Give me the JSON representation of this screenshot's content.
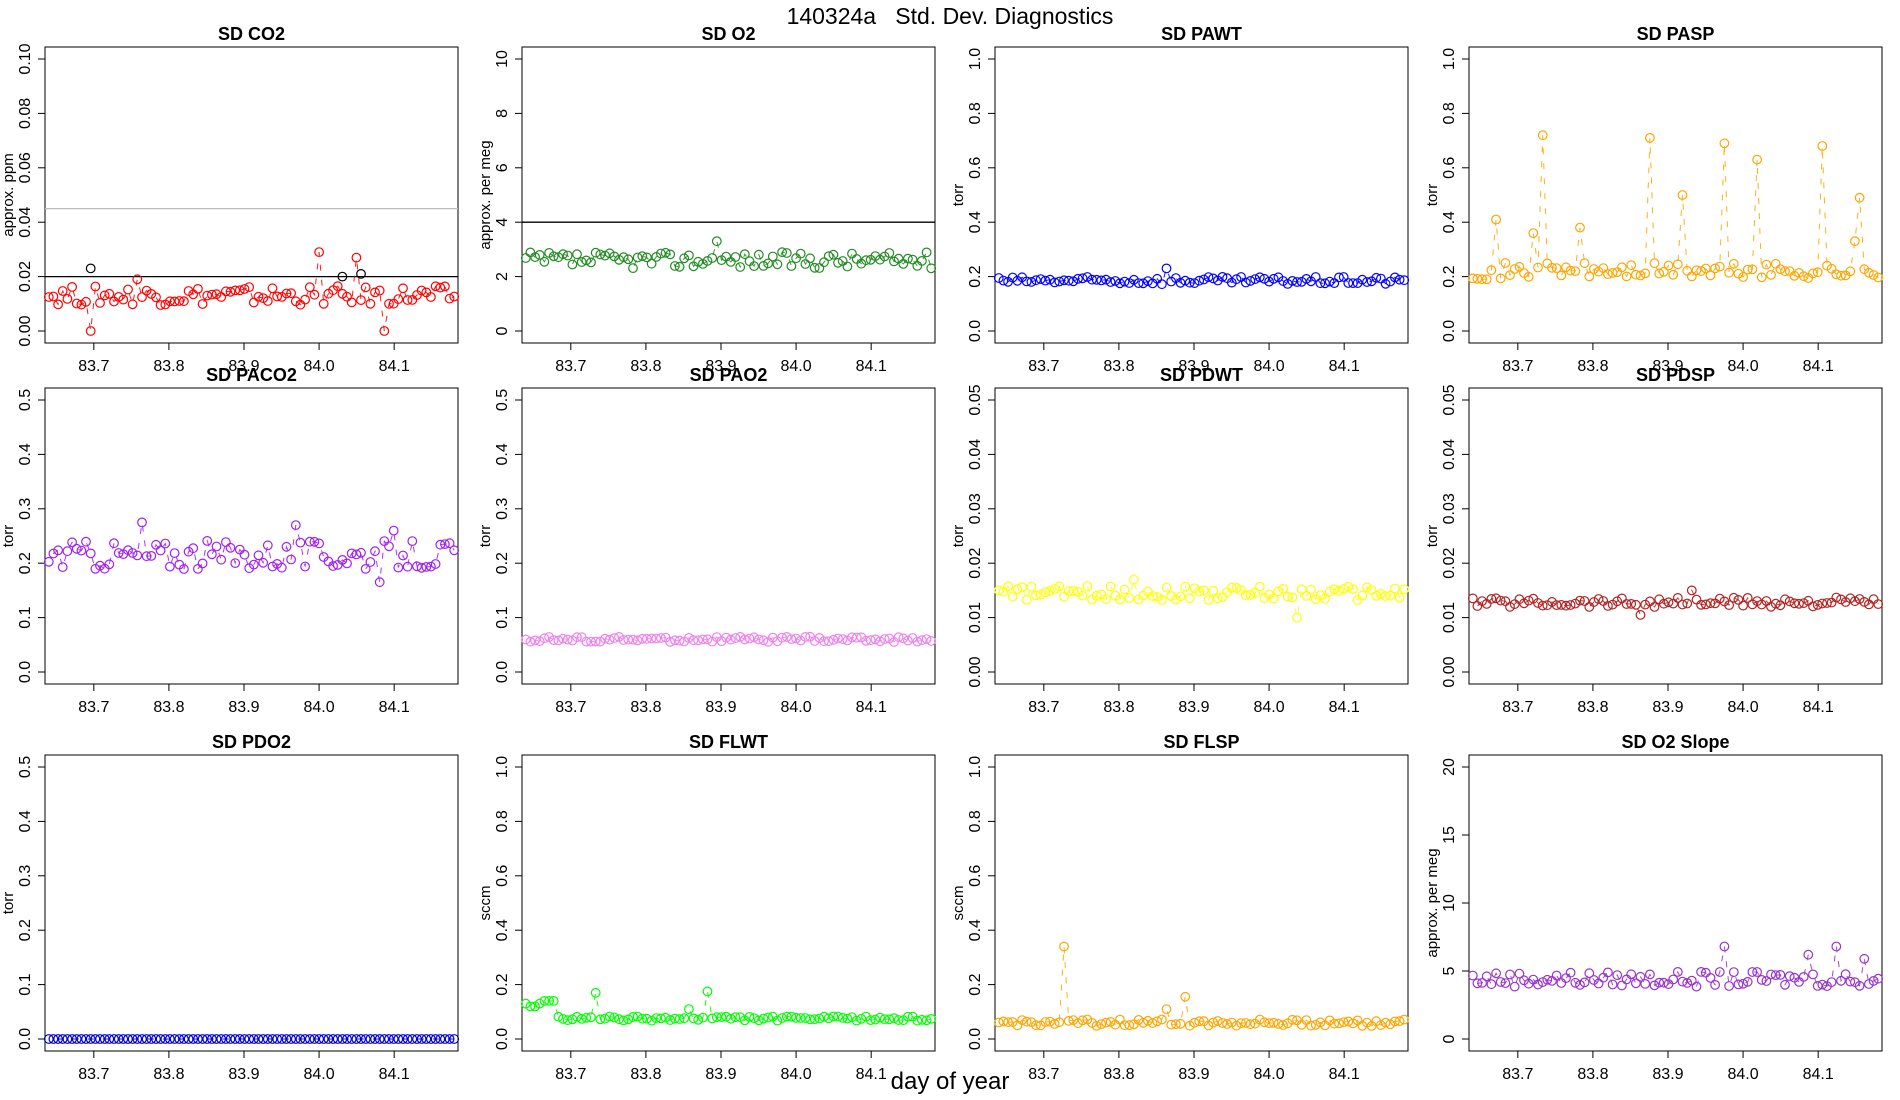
{
  "figure": {
    "title": "140324a   Std. Dev. Diagnostics",
    "xlabel": "day of year"
  },
  "chart_data": [
    {
      "type": "line",
      "title": "SD CO2",
      "ylabel": "approx. ppm",
      "xlim": [
        83.635,
        84.185
      ],
      "ylim": [
        0,
        0.1
      ],
      "yticks": [
        "0.00",
        "0.02",
        "0.04",
        "0.06",
        "0.08",
        "0.10"
      ],
      "xticks": [
        "83.7",
        "83.8",
        "83.9",
        "84.0",
        "84.1"
      ],
      "color": "#ff0000",
      "base": 0.013,
      "noise": 0.0035,
      "phase": 1,
      "spikes": [
        [
          9,
          0.0
        ],
        [
          19,
          0.019
        ],
        [
          58,
          0.029
        ],
        [
          66,
          0.027
        ],
        [
          72,
          0.0
        ]
      ],
      "hlines": [
        {
          "y": 0.02,
          "color": "#000000"
        },
        {
          "y": 0.045,
          "color": "#bbbbbb"
        }
      ],
      "flagged": [
        [
          9,
          0.023
        ],
        [
          63,
          0.02
        ],
        [
          67,
          0.021
        ]
      ],
      "flag_color": "#000000"
    },
    {
      "type": "line",
      "title": "SD O2",
      "ylabel": "approx. per meg",
      "xlim": [
        83.635,
        84.185
      ],
      "ylim": [
        0,
        10
      ],
      "yticks": [
        "0",
        "2",
        "4",
        "6",
        "8",
        "10"
      ],
      "xticks": [
        "83.7",
        "83.8",
        "83.9",
        "84.0",
        "84.1"
      ],
      "color": "#228B22",
      "base": 2.6,
      "noise": 0.3,
      "phase": 2,
      "spikes": [
        [
          41,
          3.3
        ]
      ],
      "hlines": [
        {
          "y": 4,
          "color": "#000000"
        }
      ],
      "flagged": []
    },
    {
      "type": "line",
      "title": "SD PAWT",
      "ylabel": "torr",
      "xlim": [
        83.635,
        84.185
      ],
      "ylim": [
        0,
        1
      ],
      "yticks": [
        "0.0",
        "0.2",
        "0.4",
        "0.6",
        "0.8",
        "1.0"
      ],
      "xticks": [
        "83.7",
        "83.8",
        "83.9",
        "84.0",
        "84.1"
      ],
      "color": "#0000ff",
      "base": 0.185,
      "noise": 0.014,
      "phase": 3,
      "spikes": [
        [
          36,
          0.23
        ]
      ],
      "hlines": [],
      "flagged": []
    },
    {
      "type": "line",
      "title": "SD PASP",
      "ylabel": "torr",
      "xlim": [
        83.635,
        84.185
      ],
      "ylim": [
        0,
        1
      ],
      "yticks": [
        "0.0",
        "0.2",
        "0.4",
        "0.6",
        "0.8",
        "1.0"
      ],
      "xticks": [
        "83.7",
        "83.8",
        "83.9",
        "84.0",
        "84.1"
      ],
      "color": "#ffa500",
      "base": 0.22,
      "noise": 0.03,
      "phase": 4,
      "spikes": [
        [
          5,
          0.41
        ],
        [
          13,
          0.36
        ],
        [
          15,
          0.72
        ],
        [
          23,
          0.38
        ],
        [
          38,
          0.71
        ],
        [
          45,
          0.5
        ],
        [
          54,
          0.69
        ],
        [
          61,
          0.63
        ],
        [
          75,
          0.68
        ],
        [
          83,
          0.49
        ],
        [
          82,
          0.33
        ]
      ],
      "hlines": [],
      "flagged": []
    },
    {
      "type": "line",
      "title": "SD PACO2",
      "ylabel": "torr",
      "xlim": [
        83.635,
        84.185
      ],
      "ylim": [
        0,
        0.5
      ],
      "yticks": [
        "0.0",
        "0.1",
        "0.2",
        "0.3",
        "0.4",
        "0.5"
      ],
      "xticks": [
        "83.7",
        "83.8",
        "83.9",
        "84.0",
        "84.1"
      ],
      "color": "#a020f0",
      "base": 0.215,
      "noise": 0.027,
      "phase": 5,
      "spikes": [
        [
          20,
          0.275
        ],
        [
          53,
          0.27
        ],
        [
          74,
          0.26
        ],
        [
          71,
          0.165
        ]
      ],
      "hlines": [],
      "flagged": []
    },
    {
      "type": "line",
      "title": "SD PAO2",
      "ylabel": "torr",
      "xlim": [
        83.635,
        84.185
      ],
      "ylim": [
        0,
        0.5
      ],
      "yticks": [
        "0.0",
        "0.1",
        "0.2",
        "0.3",
        "0.4",
        "0.5"
      ],
      "xticks": [
        "83.7",
        "83.8",
        "83.9",
        "84.0",
        "84.1"
      ],
      "color": "#ee82ee",
      "base": 0.06,
      "noise": 0.005,
      "phase": 6,
      "spikes": [],
      "hlines": [],
      "flagged": []
    },
    {
      "type": "line",
      "title": "SD PDWT",
      "ylabel": "torr",
      "xlim": [
        83.635,
        84.185
      ],
      "ylim": [
        0,
        0.05
      ],
      "yticks": [
        "0.00",
        "0.01",
        "0.02",
        "0.03",
        "0.04",
        "0.05"
      ],
      "xticks": [
        "83.7",
        "83.8",
        "83.9",
        "84.0",
        "84.1"
      ],
      "color": "#ffff00",
      "base": 0.0145,
      "noise": 0.0013,
      "phase": 7,
      "spikes": [
        [
          29,
          0.017
        ],
        [
          64,
          0.01
        ]
      ],
      "hlines": [],
      "flagged": []
    },
    {
      "type": "line",
      "title": "SD PDSP",
      "ylabel": "torr",
      "xlim": [
        83.635,
        84.185
      ],
      "ylim": [
        0,
        0.05
      ],
      "yticks": [
        "0.00",
        "0.01",
        "0.02",
        "0.03",
        "0.04",
        "0.05"
      ],
      "xticks": [
        "83.7",
        "83.8",
        "83.9",
        "84.0",
        "84.1"
      ],
      "color": "#b22222",
      "base": 0.0128,
      "noise": 0.0009,
      "phase": 8,
      "spikes": [
        [
          36,
          0.0105
        ],
        [
          47,
          0.015
        ]
      ],
      "hlines": [],
      "flagged": []
    },
    {
      "type": "line",
      "title": "SD PDO2",
      "ylabel": "torr",
      "xlim": [
        83.635,
        84.185
      ],
      "ylim": [
        0,
        0.5
      ],
      "yticks": [
        "0.0",
        "0.1",
        "0.2",
        "0.3",
        "0.4",
        "0.5"
      ],
      "xticks": [
        "83.7",
        "83.8",
        "83.9",
        "84.0",
        "84.1"
      ],
      "color": "#0000cd",
      "base": 0.0,
      "noise": 0,
      "phase": 9,
      "spikes": [],
      "hlines": [],
      "flagged": []
    },
    {
      "type": "line",
      "title": "SD FLWT",
      "ylabel": "sccm",
      "xlim": [
        83.635,
        84.185
      ],
      "ylim": [
        0,
        1
      ],
      "yticks": [
        "0.0",
        "0.2",
        "0.4",
        "0.6",
        "0.8",
        "1.0"
      ],
      "xticks": [
        "83.7",
        "83.8",
        "83.9",
        "84.0",
        "84.1"
      ],
      "color": "#00ff00",
      "base": 0.075,
      "noise": 0.008,
      "phase": 10,
      "spikes": [
        [
          0,
          0.13
        ],
        [
          1,
          0.12
        ],
        [
          2,
          0.12
        ],
        [
          3,
          0.13
        ],
        [
          4,
          0.14
        ],
        [
          5,
          0.14
        ],
        [
          6,
          0.14
        ],
        [
          15,
          0.17
        ],
        [
          39,
          0.175
        ],
        [
          35,
          0.11
        ]
      ],
      "hlines": [],
      "flagged": []
    },
    {
      "type": "line",
      "title": "SD FLSP",
      "ylabel": "sccm",
      "xlim": [
        83.635,
        84.185
      ],
      "ylim": [
        0,
        1
      ],
      "yticks": [
        "0.0",
        "0.2",
        "0.4",
        "0.6",
        "0.8",
        "1.0"
      ],
      "xticks": [
        "83.7",
        "83.8",
        "83.9",
        "84.0",
        "84.1"
      ],
      "color": "#ffa500",
      "base": 0.06,
      "noise": 0.012,
      "phase": 11,
      "spikes": [
        [
          14,
          0.34
        ],
        [
          36,
          0.11
        ],
        [
          40,
          0.155
        ]
      ],
      "hlines": [],
      "flagged": []
    },
    {
      "type": "line",
      "title": "SD O2 Slope",
      "ylabel": "approx. per meg",
      "xlim": [
        83.635,
        84.185
      ],
      "ylim": [
        0,
        20
      ],
      "yticks": [
        "0",
        "5",
        "10",
        "15",
        "20"
      ],
      "xticks": [
        "83.7",
        "83.8",
        "83.9",
        "84.0",
        "84.1"
      ],
      "color": "#9932cc",
      "base": 4.4,
      "noise": 0.55,
      "phase": 12,
      "spikes": [
        [
          54,
          6.8
        ],
        [
          78,
          6.8
        ],
        [
          72,
          6.2
        ],
        [
          84,
          5.9
        ]
      ],
      "hlines": [],
      "flagged": []
    }
  ]
}
